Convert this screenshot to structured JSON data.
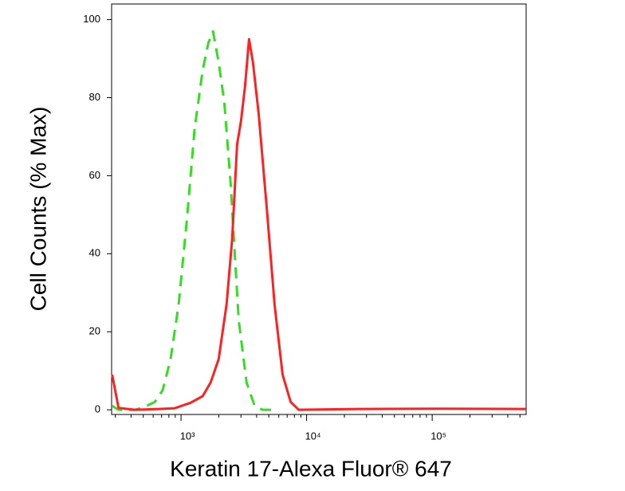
{
  "chart_data": {
    "type": "line",
    "xlabel": "Keratin 17-Alexa Fluor® 647",
    "ylabel": "Cell Counts (% Max)",
    "xscale": "log",
    "xlim": [
      280,
      560000
    ],
    "ylim": [
      -1.2,
      104
    ],
    "xticks": [
      {
        "value": 1000,
        "label": "10³"
      },
      {
        "value": 10000,
        "label": "10⁴"
      },
      {
        "value": 100000,
        "label": "10⁵"
      }
    ],
    "xminor": [
      300,
      400,
      500,
      600,
      700,
      800,
      900,
      2000,
      3000,
      4000,
      5000,
      6000,
      7000,
      8000,
      9000,
      20000,
      30000,
      40000,
      50000,
      60000,
      70000,
      80000,
      90000,
      200000,
      300000,
      400000,
      500000
    ],
    "yticks": [
      0,
      20,
      40,
      60,
      80,
      100
    ],
    "series": [
      {
        "color": "#ff2020",
        "dash": false,
        "x": [
          283,
          318,
          428,
          664,
          889,
          1192,
          1486,
          1721,
          1993,
          2306,
          2556,
          2793,
          3004,
          3234,
          3479,
          3741,
          4150,
          4806,
          5559,
          6442,
          7463,
          8635,
          25940,
          112400,
          560000
        ],
        "values": [
          9,
          0.5,
          0,
          0.2,
          0.4,
          1.8,
          3.5,
          7,
          13,
          27,
          44,
          68,
          74,
          83,
          95,
          89,
          76,
          52,
          27,
          9,
          2,
          0,
          0.2,
          0.3,
          0.2
        ]
      },
      {
        "color": "#33dd22",
        "dash": true,
        "x": [
          283,
          318,
          428,
          494,
          617,
          714,
          826,
          957,
          1108,
          1283,
          1486,
          1648,
          1798,
          1993,
          2208,
          2483,
          2876,
          3327,
          3855,
          4467,
          5559
        ],
        "values": [
          1,
          0,
          0,
          0.5,
          2,
          5,
          13,
          27,
          48,
          72,
          87,
          94,
          97,
          89,
          79,
          58,
          23,
          7,
          1,
          0,
          0
        ]
      }
    ]
  }
}
